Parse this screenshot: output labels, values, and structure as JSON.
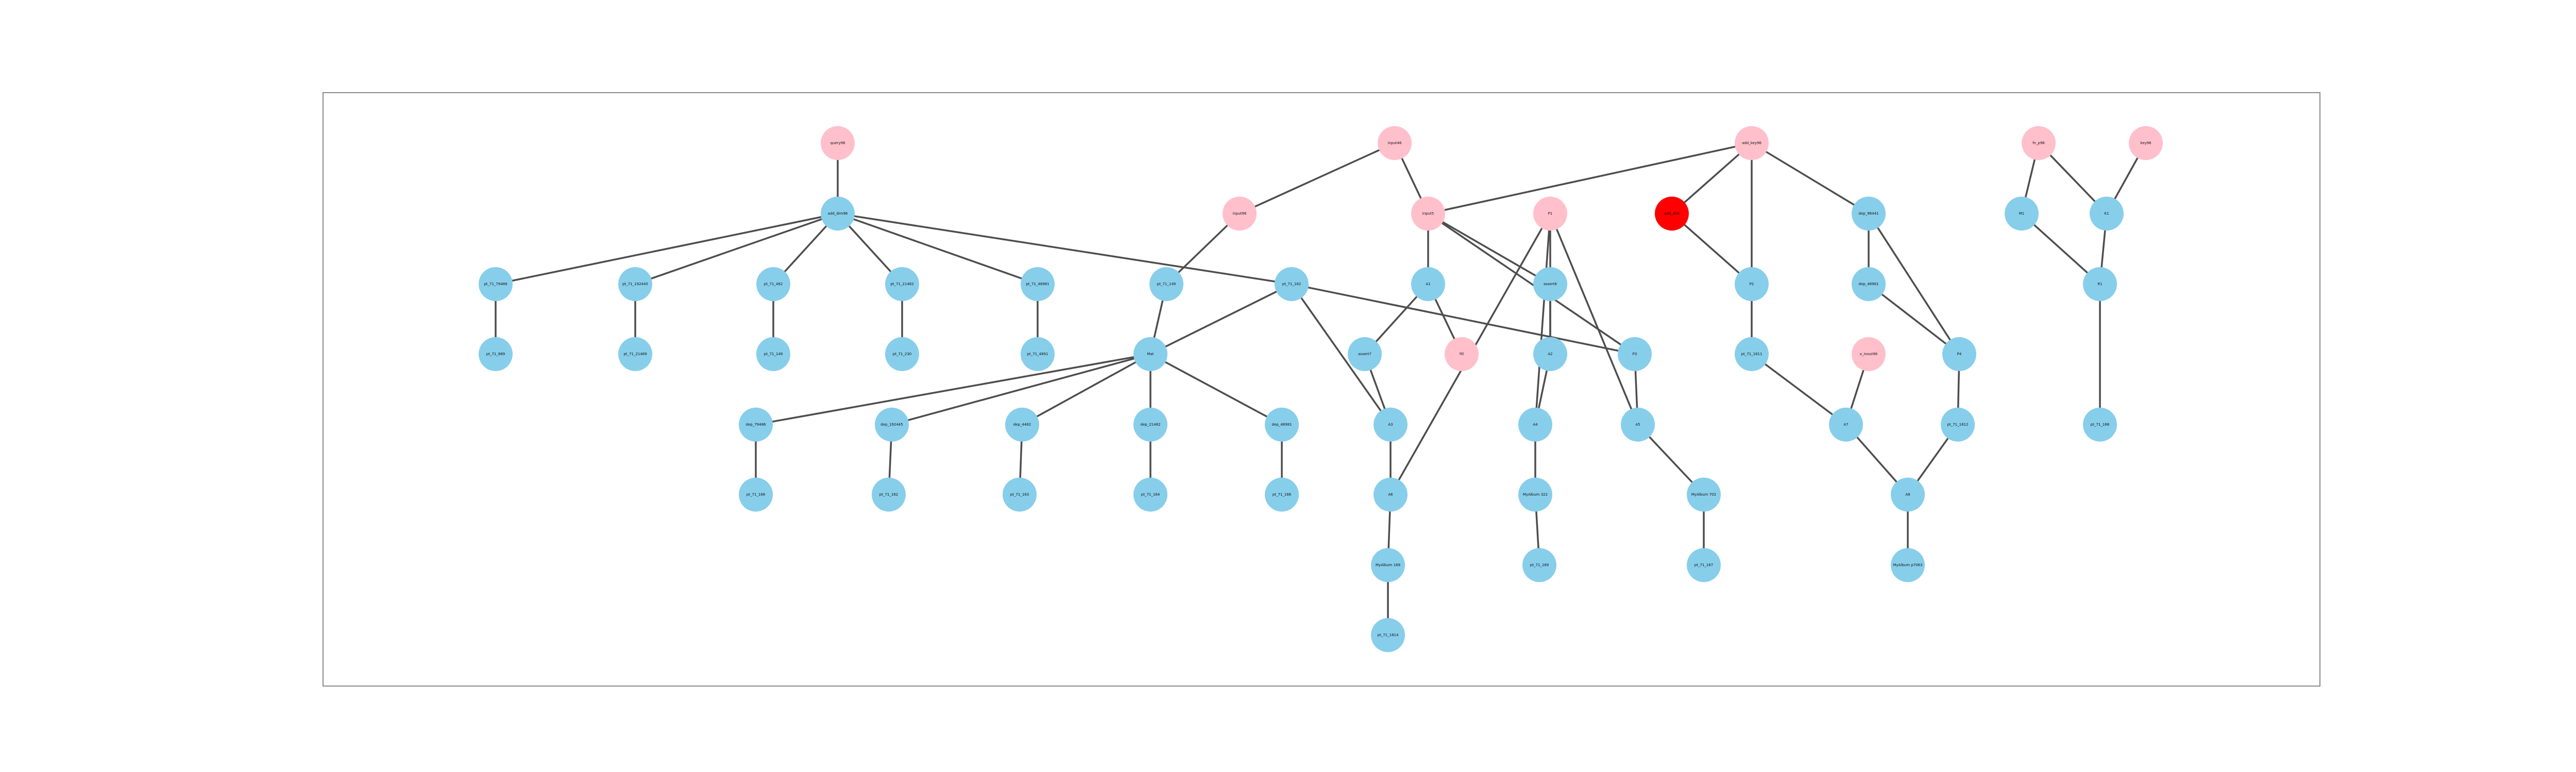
{
  "colors": {
    "input": "#ffc0cb",
    "function": "#87ceeb",
    "highlight": "#ff0000",
    "edge": "#4d4d4d",
    "frame": "#8a8a8a"
  },
  "nodes": [
    {
      "id": "p1",
      "label": "query96",
      "kind": "input"
    },
    {
      "id": "p2",
      "label": "input46",
      "kind": "input"
    },
    {
      "id": "p3",
      "label": "add_key96",
      "kind": "input"
    },
    {
      "id": "p4",
      "label": "x_inout96",
      "kind": "input"
    },
    {
      "id": "p5",
      "label": "fn_p96",
      "kind": "input"
    },
    {
      "id": "p6",
      "label": "key96",
      "kind": "input"
    },
    {
      "id": "p7",
      "label": "input96",
      "kind": "input"
    },
    {
      "id": "p8",
      "label": "input5",
      "kind": "input"
    },
    {
      "id": "p9",
      "label": "fill",
      "kind": "input"
    },
    {
      "id": "p10",
      "label": "P1",
      "kind": "input"
    },
    {
      "id": "h1",
      "label": "add_dim",
      "kind": "highlight"
    },
    {
      "id": "b1",
      "label": "add_dim96",
      "kind": "function"
    },
    {
      "id": "b2",
      "label": "M1",
      "kind": "function"
    },
    {
      "id": "b3",
      "label": "K1",
      "kind": "function"
    },
    {
      "id": "c1",
      "label": "pt_71_79486",
      "kind": "function"
    },
    {
      "id": "c2",
      "label": "pt_71_192445",
      "kind": "function"
    },
    {
      "id": "c3",
      "label": "pt_71_462",
      "kind": "function"
    },
    {
      "id": "c4",
      "label": "pt_71_21482",
      "kind": "function"
    },
    {
      "id": "c5",
      "label": "pt_71_48981",
      "kind": "function"
    },
    {
      "id": "c6",
      "label": "pt_71_149",
      "kind": "function"
    },
    {
      "id": "c7",
      "label": "pt_71_162",
      "kind": "function"
    },
    {
      "id": "c8",
      "label": "A1",
      "kind": "function"
    },
    {
      "id": "c9",
      "label": "assert6",
      "kind": "function"
    },
    {
      "id": "c10",
      "label": "P2",
      "kind": "function"
    },
    {
      "id": "c11",
      "label": "dep_98441",
      "kind": "function"
    },
    {
      "id": "c12",
      "label": "R1",
      "kind": "function"
    },
    {
      "id": "d1",
      "label": "pt_71_889",
      "kind": "function"
    },
    {
      "id": "d2",
      "label": "pt_71_21489",
      "kind": "function"
    },
    {
      "id": "d3",
      "label": "pt_71_149",
      "kind": "function"
    },
    {
      "id": "d4",
      "label": "pt_71_230",
      "kind": "function"
    },
    {
      "id": "d5",
      "label": "pt_71_4891",
      "kind": "function"
    },
    {
      "id": "d6",
      "label": "Mat",
      "kind": "function"
    },
    {
      "id": "d7",
      "label": "assert7",
      "kind": "function"
    },
    {
      "id": "d8",
      "label": "A2",
      "kind": "function"
    },
    {
      "id": "d9",
      "label": "P3",
      "kind": "function"
    },
    {
      "id": "d10",
      "label": "pt_71_1611",
      "kind": "function"
    },
    {
      "id": "d11",
      "label": "P4",
      "kind": "function"
    },
    {
      "id": "d12",
      "label": "dep_48981",
      "kind": "function"
    },
    {
      "id": "e1",
      "label": "dep_79486",
      "kind": "function"
    },
    {
      "id": "e2",
      "label": "dep_192445",
      "kind": "function"
    },
    {
      "id": "e3",
      "label": "dep_4462",
      "kind": "function"
    },
    {
      "id": "e4",
      "label": "dep_21482",
      "kind": "function"
    },
    {
      "id": "e5",
      "label": "dep_48981",
      "kind": "function"
    },
    {
      "id": "e6",
      "label": "A3",
      "kind": "function"
    },
    {
      "id": "e7",
      "label": "A4",
      "kind": "function"
    },
    {
      "id": "e8",
      "label": "A5",
      "kind": "function"
    },
    {
      "id": "e9",
      "label": "A7",
      "kind": "function"
    },
    {
      "id": "e10",
      "label": "pt_71_1612",
      "kind": "function"
    },
    {
      "id": "e11",
      "label": "pt_71_168",
      "kind": "function"
    },
    {
      "id": "f1",
      "label": "pt_71_168",
      "kind": "function"
    },
    {
      "id": "f2",
      "label": "pt_71_162",
      "kind": "function"
    },
    {
      "id": "f3",
      "label": "pt_71_163",
      "kind": "function"
    },
    {
      "id": "f4",
      "label": "pt_71_164",
      "kind": "function"
    },
    {
      "id": "f5",
      "label": "pt_71_166",
      "kind": "function"
    },
    {
      "id": "f6",
      "label": "A6",
      "kind": "function"
    },
    {
      "id": "f7",
      "label": "MyAlbum 322",
      "kind": "function"
    },
    {
      "id": "f8",
      "label": "MyAlbum 702",
      "kind": "function"
    },
    {
      "id": "f9",
      "label": "A8",
      "kind": "function"
    },
    {
      "id": "g1",
      "label": "MyAlbum 169",
      "kind": "function"
    },
    {
      "id": "g2",
      "label": "pt_71_169",
      "kind": "function"
    },
    {
      "id": "g3",
      "label": "pt_71_167",
      "kind": "function"
    },
    {
      "id": "g4",
      "label": "MyAlbum p7063",
      "kind": "function"
    },
    {
      "id": "i1",
      "label": "pt_71_1814",
      "kind": "function"
    }
  ],
  "edges": [
    [
      "p1",
      "b1"
    ],
    [
      "b1",
      "c1"
    ],
    [
      "b1",
      "c2"
    ],
    [
      "b1",
      "c3"
    ],
    [
      "b1",
      "c4"
    ],
    [
      "b1",
      "c5"
    ],
    [
      "b1",
      "c7"
    ],
    [
      "c1",
      "d1"
    ],
    [
      "c2",
      "d2"
    ],
    [
      "c3",
      "d3"
    ],
    [
      "c4",
      "d4"
    ],
    [
      "c5",
      "d5"
    ],
    [
      "p2",
      "p7"
    ],
    [
      "p2",
      "p8"
    ],
    [
      "p7",
      "c6"
    ],
    [
      "c6",
      "d6"
    ],
    [
      "c7",
      "d6"
    ],
    [
      "c7",
      "d9"
    ],
    [
      "c7",
      "e6"
    ],
    [
      "d6",
      "e1"
    ],
    [
      "d6",
      "e2"
    ],
    [
      "d6",
      "e3"
    ],
    [
      "d6",
      "e4"
    ],
    [
      "d6",
      "e5"
    ],
    [
      "e1",
      "f1"
    ],
    [
      "e2",
      "f2"
    ],
    [
      "e3",
      "f3"
    ],
    [
      "e4",
      "f4"
    ],
    [
      "e5",
      "f5"
    ],
    [
      "p9",
      "c8"
    ],
    [
      "p8",
      "c8"
    ],
    [
      "p8",
      "c9"
    ],
    [
      "p8",
      "d9"
    ],
    [
      "c8",
      "d7"
    ],
    [
      "d7",
      "e6"
    ],
    [
      "c9",
      "d8"
    ],
    [
      "d8",
      "e7"
    ],
    [
      "p10",
      "d8"
    ],
    [
      "p10",
      "e7"
    ],
    [
      "p10",
      "f6"
    ],
    [
      "p10",
      "e8"
    ],
    [
      "e6",
      "f6"
    ],
    [
      "f6",
      "g1"
    ],
    [
      "g1",
      "i1"
    ],
    [
      "e7",
      "f7"
    ],
    [
      "f7",
      "g2"
    ],
    [
      "d9",
      "e8"
    ],
    [
      "e8",
      "f8"
    ],
    [
      "f8",
      "g3"
    ],
    [
      "p3",
      "p8"
    ],
    [
      "p3",
      "h1"
    ],
    [
      "p3",
      "c10"
    ],
    [
      "p3",
      "c11"
    ],
    [
      "h1",
      "c10"
    ],
    [
      "c10",
      "d10"
    ],
    [
      "d10",
      "e9"
    ],
    [
      "c11",
      "d12"
    ],
    [
      "c11",
      "d11"
    ],
    [
      "d12",
      "d11"
    ],
    [
      "p4",
      "e9"
    ],
    [
      "e9",
      "f9"
    ],
    [
      "d11",
      "e10"
    ],
    [
      "e10",
      "f9"
    ],
    [
      "f9",
      "g4"
    ],
    [
      "p5",
      "b2"
    ],
    [
      "p5",
      "b3"
    ],
    [
      "p6",
      "b3"
    ],
    [
      "b2",
      "c12"
    ],
    [
      "b3",
      "c12"
    ],
    [
      "c12",
      "e11"
    ]
  ]
}
